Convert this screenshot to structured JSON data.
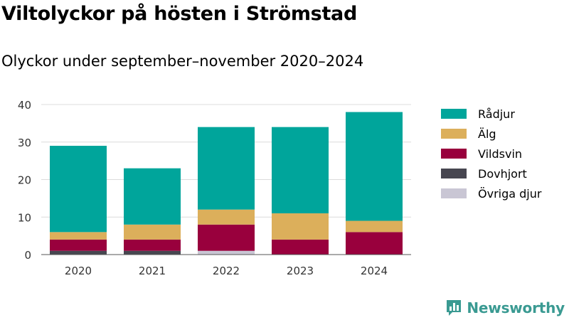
{
  "brand": {
    "name": "Newsworthy"
  },
  "colors": {
    "Rådjur": "#00a59b",
    "Älg": "#dcaf5b",
    "Vildsvin": "#99003d",
    "Dovhjort": "#474650",
    "Övriga djur": "#c9c6d4",
    "brand": "#3a9a92"
  },
  "chart_data": {
    "type": "bar",
    "stacked": true,
    "title": "Viltolyckor på hösten i Strömstad",
    "subtitle": "Olyckor under september–november 2020–2024",
    "categories": [
      "2020",
      "2021",
      "2022",
      "2023",
      "2024"
    ],
    "series": [
      {
        "name": "Rådjur",
        "values": [
          23,
          15,
          22,
          23,
          29
        ]
      },
      {
        "name": "Älg",
        "values": [
          2,
          4,
          4,
          7,
          3
        ]
      },
      {
        "name": "Vildsvin",
        "values": [
          3,
          3,
          7,
          4,
          6
        ]
      },
      {
        "name": "Dovhjort",
        "values": [
          1,
          1,
          0,
          0,
          0
        ]
      },
      {
        "name": "Övriga djur",
        "values": [
          0,
          0,
          1,
          0,
          0
        ]
      }
    ],
    "stack_order": [
      "Övriga djur",
      "Dovhjort",
      "Vildsvin",
      "Älg",
      "Rådjur"
    ],
    "legend_order": [
      "Rådjur",
      "Älg",
      "Vildsvin",
      "Dovhjort",
      "Övriga djur"
    ],
    "yticks": [
      0,
      10,
      20,
      30,
      40
    ],
    "ylim": [
      0,
      40
    ],
    "xlabel": "",
    "ylabel": "",
    "grid": true,
    "legend_position": "right"
  }
}
